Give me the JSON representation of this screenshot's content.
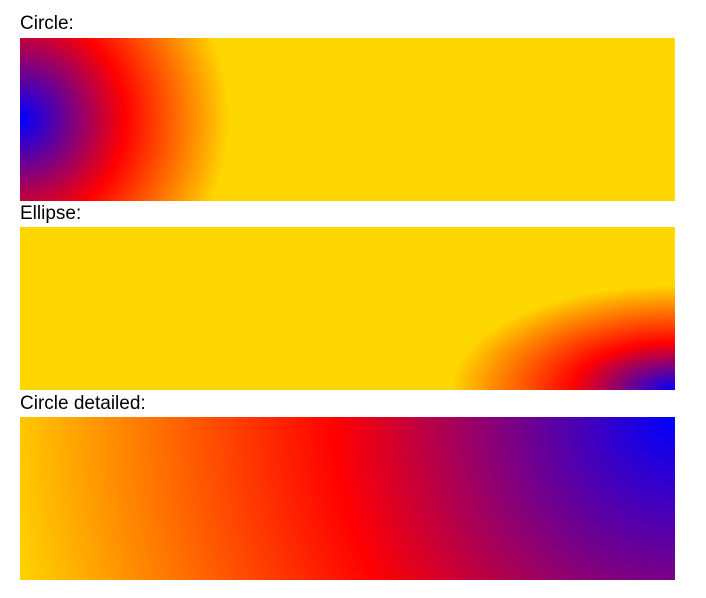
{
  "sections": [
    {
      "label": "Circle:",
      "gradient": {
        "kind": "radial",
        "shape": "circle",
        "center": "left center",
        "stops": [
          "#0000ff",
          "#ff0000",
          "#ffd700"
        ]
      }
    },
    {
      "label": "Ellipse:",
      "gradient": {
        "kind": "radial",
        "shape": "ellipse",
        "center": "bottom right",
        "stops": [
          "#0000ff",
          "#ff0000",
          "#ffd700"
        ]
      }
    },
    {
      "label": "Circle detailed:",
      "gradient": {
        "kind": "radial",
        "shape": "circle",
        "center": "top right",
        "stops": [
          "#0000ff",
          "#ff0000",
          "#ffd700"
        ]
      }
    }
  ]
}
